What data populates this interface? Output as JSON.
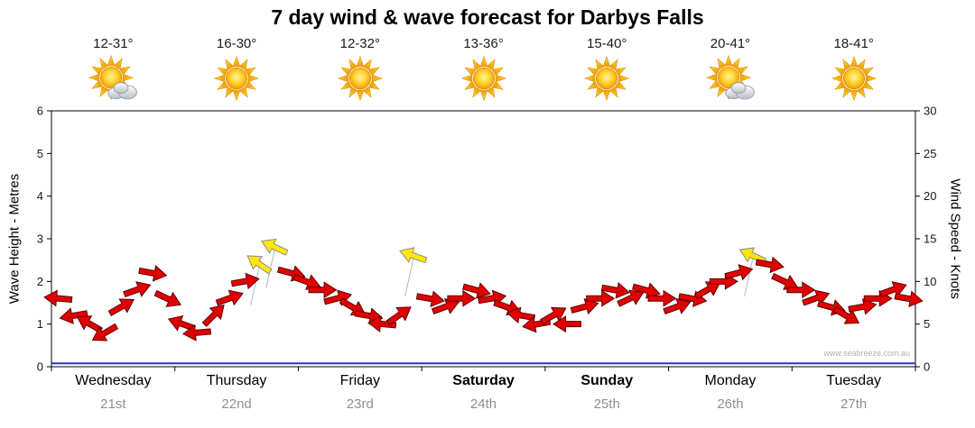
{
  "title": "7 day wind & wave forecast for Darbys Falls",
  "watermark": "www.seabreeze.com.au",
  "days": [
    {
      "name": "Wednesday",
      "date": "21st",
      "temp_range": "12-31°",
      "icon": "sun-cloud"
    },
    {
      "name": "Thursday",
      "date": "22nd",
      "temp_range": "16-30°",
      "icon": "sun"
    },
    {
      "name": "Friday",
      "date": "23rd",
      "temp_range": "12-32°",
      "icon": "sun"
    },
    {
      "name": "Saturday",
      "date": "24th",
      "temp_range": "13-36°",
      "icon": "sun"
    },
    {
      "name": "Sunday",
      "date": "25th",
      "temp_range": "15-40°",
      "icon": "sun"
    },
    {
      "name": "Monday",
      "date": "26th",
      "temp_range": "20-41°",
      "icon": "sun-cloud"
    },
    {
      "name": "Tuesday",
      "date": "27th",
      "temp_range": "18-41°",
      "icon": "sun"
    }
  ],
  "chart_data": {
    "type": "scatter",
    "style": "wind-arrow-timeseries",
    "x_days": [
      "Wednesday",
      "Thursday",
      "Friday",
      "Saturday",
      "Sunday",
      "Monday",
      "Tuesday"
    ],
    "points_per_day": 8,
    "y_left": {
      "label": "Wave Height - Metres",
      "min": 0,
      "max": 6,
      "ticks": [
        0,
        1,
        2,
        3,
        4,
        5,
        6
      ]
    },
    "y_right": {
      "label": "Wind Speed - Knots",
      "min": 0,
      "max": 30,
      "ticks": [
        0,
        5,
        10,
        15,
        20,
        25,
        30
      ]
    },
    "arrow_colors": {
      "normal": "#e10000",
      "gust": "#ffe800"
    },
    "wave_color": "#2b32c8",
    "wave_height_m_constant": 0.08,
    "wind_points_knots": [
      {
        "s": 8,
        "d": 185
      },
      {
        "s": 6,
        "d": 170
      },
      {
        "s": 5,
        "d": 210
      },
      {
        "s": 4,
        "d": 150
      },
      {
        "s": 7,
        "d": -30
      },
      {
        "s": 9,
        "d": -20
      },
      {
        "s": 11,
        "d": 10
      },
      {
        "s": 8,
        "d": 25
      },
      {
        "s": 5,
        "d": 200
      },
      {
        "s": 4,
        "d": 175
      },
      {
        "s": 6,
        "d": -45
      },
      {
        "s": 8,
        "d": -20
      },
      {
        "s": 10,
        "d": -10
      },
      {
        "s": 12,
        "d": 215,
        "c": "y"
      },
      {
        "s": 14,
        "d": 205,
        "c": "y"
      },
      {
        "s": 11,
        "d": 15
      },
      {
        "s": 10,
        "d": 20
      },
      {
        "s": 9,
        "d": 0
      },
      {
        "s": 8,
        "d": -15
      },
      {
        "s": 7,
        "d": 30
      },
      {
        "s": 6,
        "d": 10
      },
      {
        "s": 5,
        "d": 185
      },
      {
        "s": 6,
        "d": -35
      },
      {
        "s": 13,
        "d": 200,
        "c": "y"
      },
      {
        "s": 8,
        "d": 10
      },
      {
        "s": 7,
        "d": -20
      },
      {
        "s": 8,
        "d": 0
      },
      {
        "s": 9,
        "d": 15
      },
      {
        "s": 8,
        "d": -10
      },
      {
        "s": 7,
        "d": 20
      },
      {
        "s": 6,
        "d": 190
      },
      {
        "s": 5,
        "d": 170
      },
      {
        "s": 6,
        "d": -30
      },
      {
        "s": 5,
        "d": 180
      },
      {
        "s": 7,
        "d": -15
      },
      {
        "s": 8,
        "d": 0
      },
      {
        "s": 9,
        "d": 10
      },
      {
        "s": 8,
        "d": -25
      },
      {
        "s": 9,
        "d": 15
      },
      {
        "s": 8,
        "d": 0
      },
      {
        "s": 7,
        "d": -20
      },
      {
        "s": 8,
        "d": 10
      },
      {
        "s": 9,
        "d": -30
      },
      {
        "s": 10,
        "d": 0
      },
      {
        "s": 11,
        "d": -15
      },
      {
        "s": 13,
        "d": 205,
        "c": "y"
      },
      {
        "s": 12,
        "d": 10
      },
      {
        "s": 10,
        "d": 25
      },
      {
        "s": 9,
        "d": 0
      },
      {
        "s": 8,
        "d": -20
      },
      {
        "s": 7,
        "d": 15
      },
      {
        "s": 6,
        "d": 30
      },
      {
        "s": 7,
        "d": -10
      },
      {
        "s": 8,
        "d": 0
      },
      {
        "s": 9,
        "d": -20
      },
      {
        "s": 8,
        "d": 10
      }
    ]
  }
}
